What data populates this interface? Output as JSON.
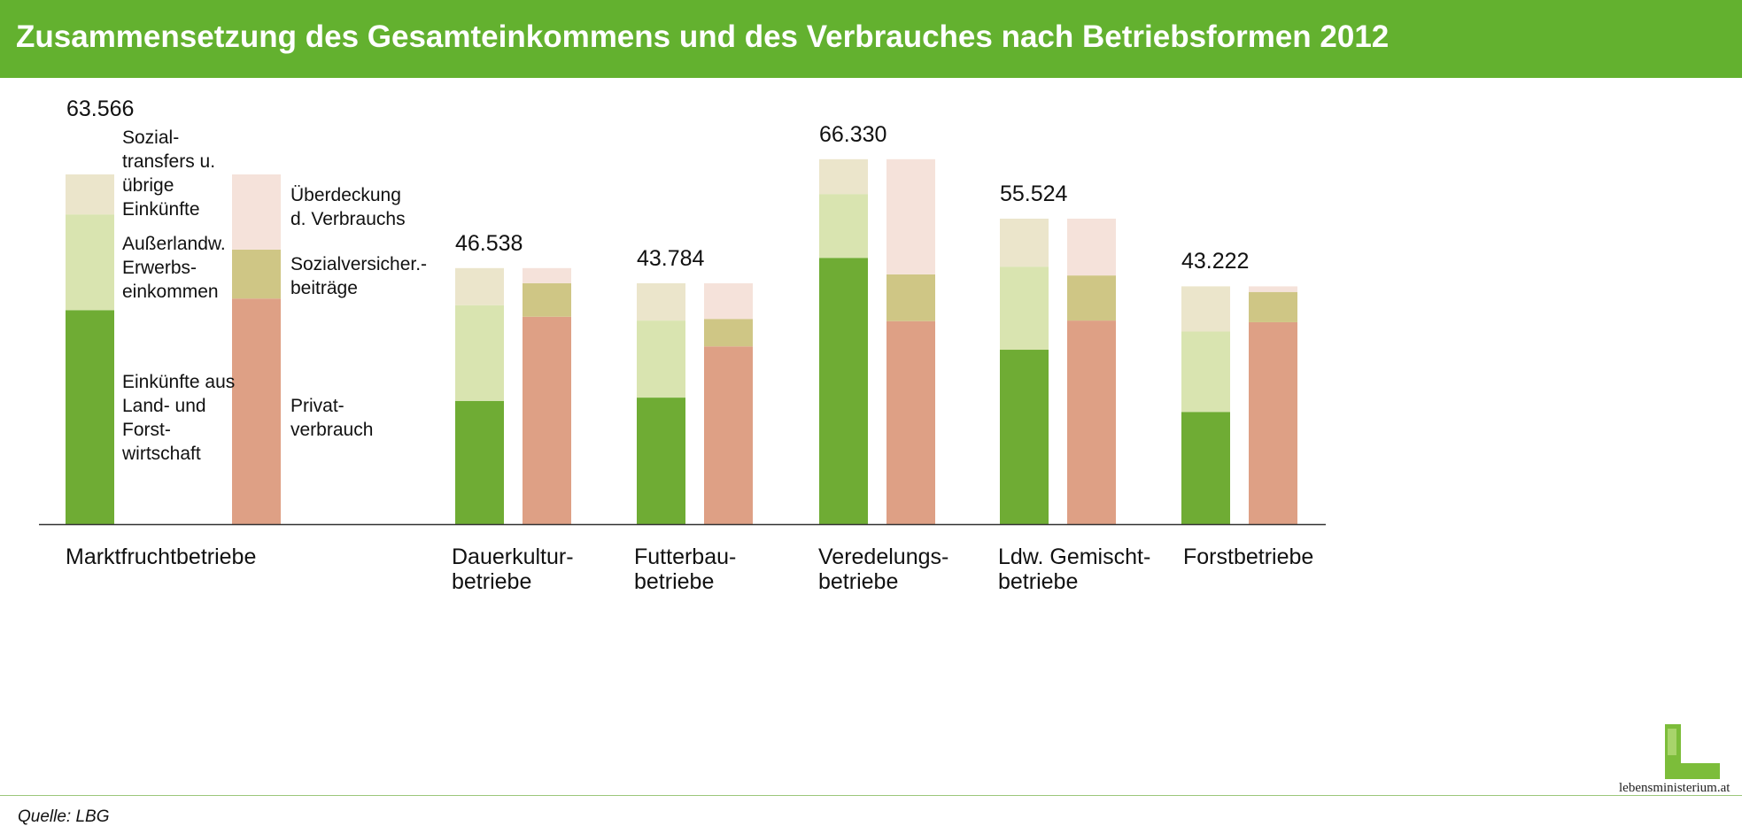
{
  "chart_data": {
    "type": "bar",
    "title": "Zusammensetzung des Gesamteinkommens und des Verbrauches nach Betriebsformen 2012",
    "xlabel": "",
    "ylabel": "",
    "ylim": [
      0,
      70000
    ],
    "grid": false,
    "legend": "inline annotations",
    "categories": [
      "Marktfruchtbetriebe",
      "Dauerkultur-betriebe",
      "Futterbau-betriebe",
      "Veredelungs-betriebe",
      "Ldw. Gemischt-betriebe",
      "Forstbetriebe"
    ],
    "category_lines": [
      [
        "Marktfruchtbetriebe",
        ""
      ],
      [
        "Dauerkultur-",
        "betriebe"
      ],
      [
        "Futterbau-",
        "betriebe"
      ],
      [
        "Veredelungs-",
        "betriebe"
      ],
      [
        "Ldw. Gemischt-",
        "betriebe"
      ],
      [
        "Forstbetriebe",
        ""
      ]
    ],
    "totals": [
      "63.566",
      "46.538",
      "43.784",
      "66.330",
      "55.524",
      "43.222"
    ],
    "income_series": [
      {
        "name": "Einkünfte aus Land- und Forstwirtschaft",
        "color": "#6fac34",
        "values": [
          38900,
          22400,
          23000,
          48400,
          31700,
          20400
        ]
      },
      {
        "name": "Außerlandw. Erwerbseinkommen",
        "color": "#d9e4b0",
        "values": [
          17400,
          17400,
          14000,
          11600,
          15100,
          14600
        ]
      },
      {
        "name": "Sozialtransfers u. übrige Einkünfte",
        "color": "#ebe5cb",
        "values": [
          7266,
          6738,
          6784,
          6330,
          8724,
          8222
        ]
      }
    ],
    "consumption_series": [
      {
        "name": "Privatverbrauch",
        "color": "#dea085",
        "values": [
          41000,
          37700,
          32300,
          36900,
          37000,
          36700
        ]
      },
      {
        "name": "Sozialversicher.-beiträge",
        "color": "#cfc685",
        "values": [
          8900,
          6100,
          5000,
          8500,
          8200,
          5500
        ]
      },
      {
        "name": "Überdeckung d. Verbrauchs",
        "color": "#f5e2da",
        "values": [
          13666,
          2738,
          6484,
          20930,
          10324,
          1022
        ]
      }
    ],
    "annotations": {
      "income": [
        [
          "Sozial-",
          "transfers u.",
          "übrige",
          "Einkünfte"
        ],
        [
          "Außerlandw.",
          "Erwerbs-",
          "einkommen"
        ],
        [
          "Einkünfte aus",
          "Land- und",
          "Forst-",
          "wirtschaft"
        ]
      ],
      "consumption": [
        [
          "Überdeckung",
          "d. Verbrauchs"
        ],
        [
          "Sozialversicher.-",
          "beiträge"
        ],
        [
          "Privat-",
          "verbrauch"
        ]
      ]
    }
  },
  "source": "Quelle: LBG",
  "logo_text": "lebensministerium.at"
}
